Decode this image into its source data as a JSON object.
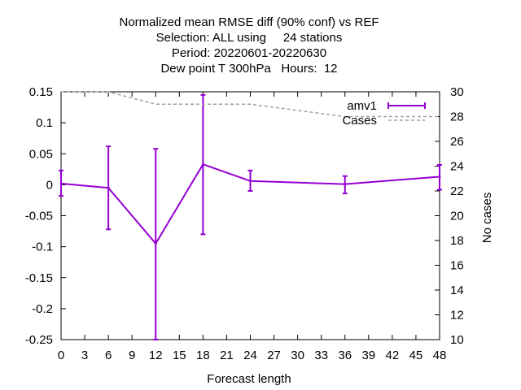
{
  "chart_data": {
    "type": "line",
    "title_lines": [
      "Normalized mean RMSE diff (90% conf) vs REF",
      "Selection: ALL using     24 stations",
      "Period: 20220601-20220630",
      "Dew point T 300hPa   Hours:  12"
    ],
    "xlabel": "Forecast length",
    "ylabel": "",
    "y2label": "No cases",
    "xlim": [
      0,
      48
    ],
    "ylim": [
      -0.25,
      0.15
    ],
    "y2lim": [
      10,
      30
    ],
    "x_ticks": [
      "0",
      "3",
      "6",
      "9",
      "12",
      "15",
      "18",
      "21",
      "24",
      "27",
      "30",
      "33",
      "36",
      "39",
      "42",
      "45",
      "48"
    ],
    "y_ticks": [
      "0.15",
      "0.1",
      "0.05",
      "0",
      "-0.05",
      "-0.1",
      "-0.15",
      "-0.2",
      "-0.25"
    ],
    "y2_ticks": [
      "30",
      "28",
      "26",
      "24",
      "22",
      "20",
      "18",
      "16",
      "14",
      "12",
      "10"
    ],
    "legend_position": "top-right",
    "series": [
      {
        "name": "amv1",
        "axis": "left",
        "color": "#9400d3",
        "style": "line-errorbars",
        "x": [
          0,
          6,
          12,
          18,
          24,
          36,
          48
        ],
        "y": [
          0.002,
          -0.005,
          -0.095,
          0.033,
          0.006,
          0.001,
          0.013
        ],
        "y_low": [
          -0.018,
          -0.072,
          -0.25,
          -0.08,
          -0.01,
          -0.014,
          -0.008
        ],
        "y_high": [
          0.023,
          0.062,
          0.058,
          0.145,
          0.023,
          0.014,
          0.032
        ]
      },
      {
        "name": "Cases",
        "axis": "right",
        "color": "#a0a0a0",
        "style": "dashed",
        "x": [
          0,
          6,
          12,
          18,
          24,
          36,
          48
        ],
        "y": [
          30,
          30,
          29,
          29,
          29,
          28,
          28
        ]
      }
    ]
  }
}
